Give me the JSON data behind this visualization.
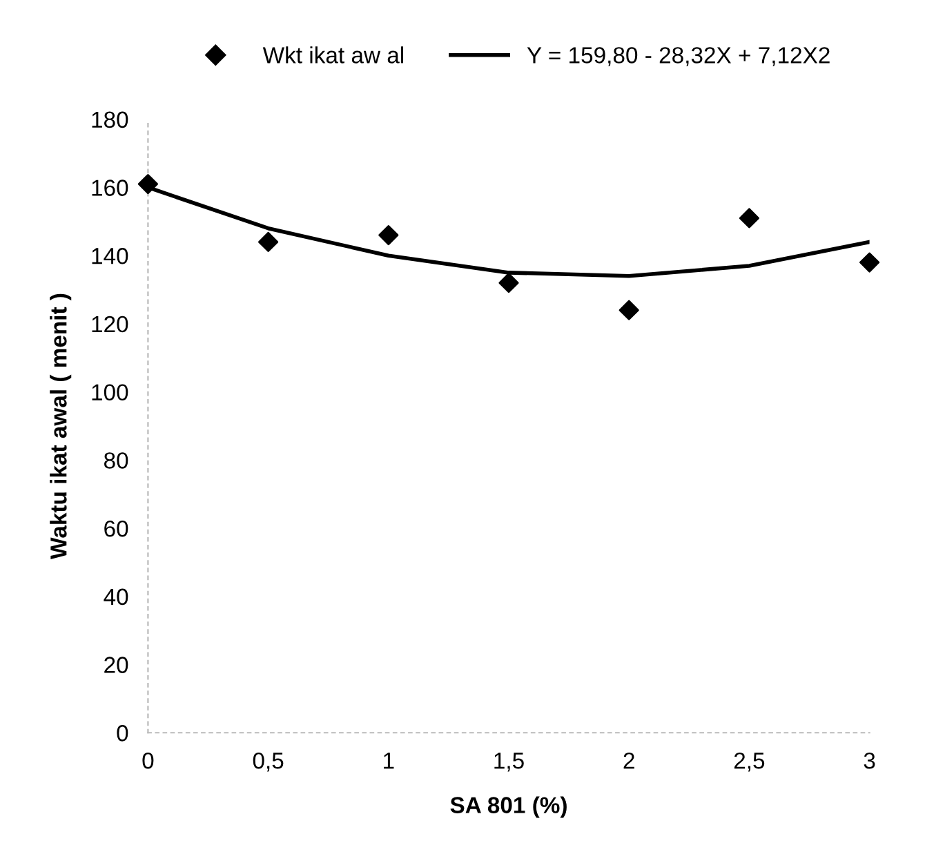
{
  "chart_data": {
    "type": "scatter",
    "xlabel": "SA 801 (%)",
    "ylabel": "Waktu ikat awal ( menit )",
    "x": [
      0,
      0.5,
      1,
      1.5,
      2,
      2.5,
      3
    ],
    "series": [
      {
        "name": "Wkt ikat aw al",
        "color": "#000000",
        "marker": "diamond",
        "values": [
          161,
          144,
          146,
          132,
          124,
          151,
          138
        ]
      },
      {
        "name": "Y = 159,80 - 28,32X + 7,12X2",
        "type": "line",
        "color": "#000000",
        "marker": "none",
        "line_style": "solid",
        "x": [
          0,
          0.5,
          1,
          1.5,
          2,
          2.5,
          3
        ],
        "values": [
          160,
          148,
          140,
          135,
          134,
          137,
          144
        ]
      }
    ],
    "xlim": [
      0,
      3
    ],
    "ylim": [
      0,
      180
    ],
    "xticks": [
      {
        "value": 0,
        "label": "0"
      },
      {
        "value": 0.5,
        "label": "0,5"
      },
      {
        "value": 1,
        "label": "1"
      },
      {
        "value": 1.5,
        "label": "1,5"
      },
      {
        "value": 2,
        "label": "2"
      },
      {
        "value": 2.5,
        "label": "2,5"
      },
      {
        "value": 3,
        "label": "3"
      }
    ],
    "yticks": [
      0,
      20,
      40,
      60,
      80,
      100,
      120,
      140,
      160,
      180
    ],
    "grid": false,
    "legend": "top"
  }
}
